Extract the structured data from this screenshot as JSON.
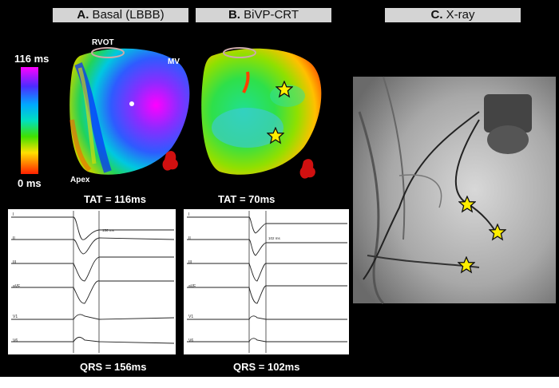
{
  "panels": {
    "a_letter": "A.",
    "a_title": " Basal (LBBB)",
    "b_letter": "B.",
    "b_title": " BiVP-CRT",
    "c_letter": "C.",
    "c_title": " X-ray"
  },
  "scale": {
    "max_label": "116 ms",
    "min_label": "0 ms"
  },
  "anatomy": {
    "rvot": "RVOT",
    "mv": "MV",
    "apex": "Apex"
  },
  "measurements": {
    "tat_basal": "TAT = 116ms",
    "tat_crt": "TAT = 70ms",
    "qrs_basal": "QRS = 156ms",
    "qrs_crt": "QRS = 102ms",
    "ecg_note_basal": "156 ms",
    "ecg_note_crt": "102 ms"
  },
  "ecg_leads": [
    "I",
    "II",
    "III",
    "aVF",
    "V1",
    "V6"
  ],
  "colors": {
    "background": "#000000",
    "label_bg": "#d4d4d4",
    "star": "#ffee00"
  }
}
